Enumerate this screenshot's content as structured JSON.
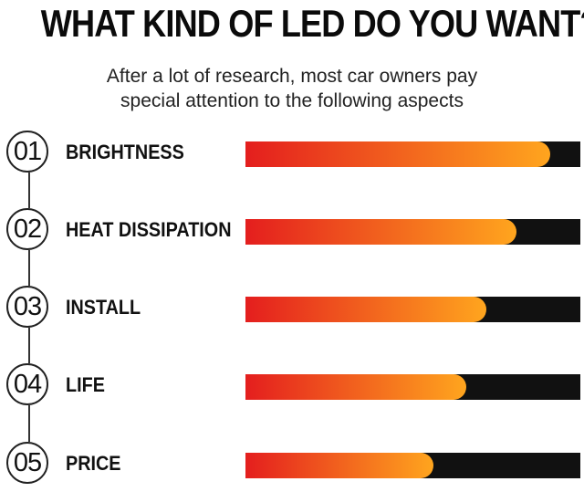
{
  "header": {
    "title": "WHAT KIND OF LED DO YOU WANT?",
    "subtitle_line1": "After a lot of research, most car owners pay",
    "subtitle_line2": "special attention to the following aspects"
  },
  "colors": {
    "bar_start": "#e41e1e",
    "bar_end": "#ffa51e",
    "track": "#111111"
  },
  "chart_data": {
    "type": "bar",
    "orientation": "horizontal",
    "categories": [
      "BRIGHTNESS",
      "HEAT DISSIPATION",
      "INSTALL",
      "LIFE",
      "PRICE"
    ],
    "numbers": [
      "01",
      "02",
      "03",
      "04",
      "05"
    ],
    "values": [
      91,
      81,
      72,
      66,
      56
    ],
    "value_unit": "percent of bar",
    "ylim": [
      0,
      100
    ],
    "grid": false,
    "legend": "none"
  }
}
